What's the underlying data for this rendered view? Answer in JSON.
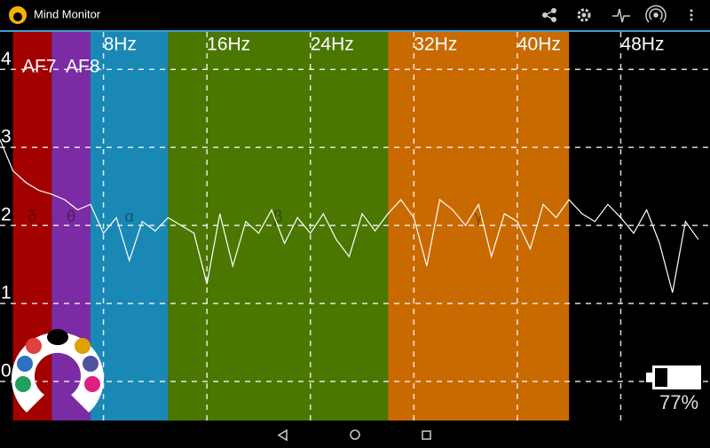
{
  "app": {
    "title": "Mind Monitor",
    "channels": [
      "AF7",
      "AF8"
    ],
    "battery": "77%"
  },
  "chart_data": {
    "type": "line",
    "x": [
      0,
      1,
      2,
      3,
      4,
      5,
      6,
      7,
      8,
      9,
      10,
      11,
      12,
      13,
      14,
      15,
      16,
      17,
      18,
      19,
      20,
      21,
      22,
      23,
      24,
      25,
      26,
      27,
      28,
      29,
      30,
      31,
      32,
      33,
      34,
      35,
      36,
      37,
      38,
      39,
      40,
      41,
      42,
      43,
      44,
      45,
      46,
      47,
      48,
      49,
      50,
      51,
      52,
      53,
      54
    ],
    "values": [
      3.1,
      2.7,
      2.55,
      2.45,
      2.4,
      2.33,
      2.2,
      2.27,
      1.9,
      2.1,
      1.55,
      2.05,
      1.93,
      2.1,
      2.0,
      1.9,
      1.25,
      2.15,
      1.48,
      2.05,
      1.9,
      2.2,
      1.77,
      2.1,
      1.9,
      2.15,
      1.82,
      1.6,
      2.15,
      1.93,
      2.15,
      2.33,
      2.1,
      1.48,
      2.33,
      2.2,
      2.0,
      2.27,
      1.6,
      2.15,
      2.05,
      1.7,
      2.27,
      2.1,
      2.33,
      2.15,
      2.05,
      2.27,
      2.1,
      1.9,
      2.2,
      1.77,
      1.14,
      2.05,
      1.82
    ],
    "color": "#ffffff",
    "xlim": [
      0,
      54.9
    ],
    "ylim": [
      -0.5,
      4.48
    ],
    "xticks": [
      {
        "value": 8,
        "label": "8Hz"
      },
      {
        "value": 16,
        "label": "16Hz"
      },
      {
        "value": 24,
        "label": "24Hz"
      },
      {
        "value": 32,
        "label": "32Hz"
      },
      {
        "value": 40,
        "label": "40Hz"
      },
      {
        "value": 48,
        "label": "48Hz"
      }
    ],
    "yticks": [
      0,
      1,
      2,
      3,
      4
    ],
    "grid": true,
    "bands": [
      {
        "symbol": "δ",
        "range": [
          1,
          4
        ],
        "color": "#a30000"
      },
      {
        "symbol": "θ",
        "range": [
          4,
          7
        ],
        "color": "#7b2ba3"
      },
      {
        "symbol": "α",
        "range": [
          7,
          13
        ],
        "color": "#1a88b5"
      },
      {
        "symbol": "β",
        "range": [
          13,
          30
        ],
        "color": "#4a7700"
      },
      {
        "symbol": "γ",
        "range": [
          30,
          44
        ],
        "color": "#c96a00"
      }
    ]
  }
}
